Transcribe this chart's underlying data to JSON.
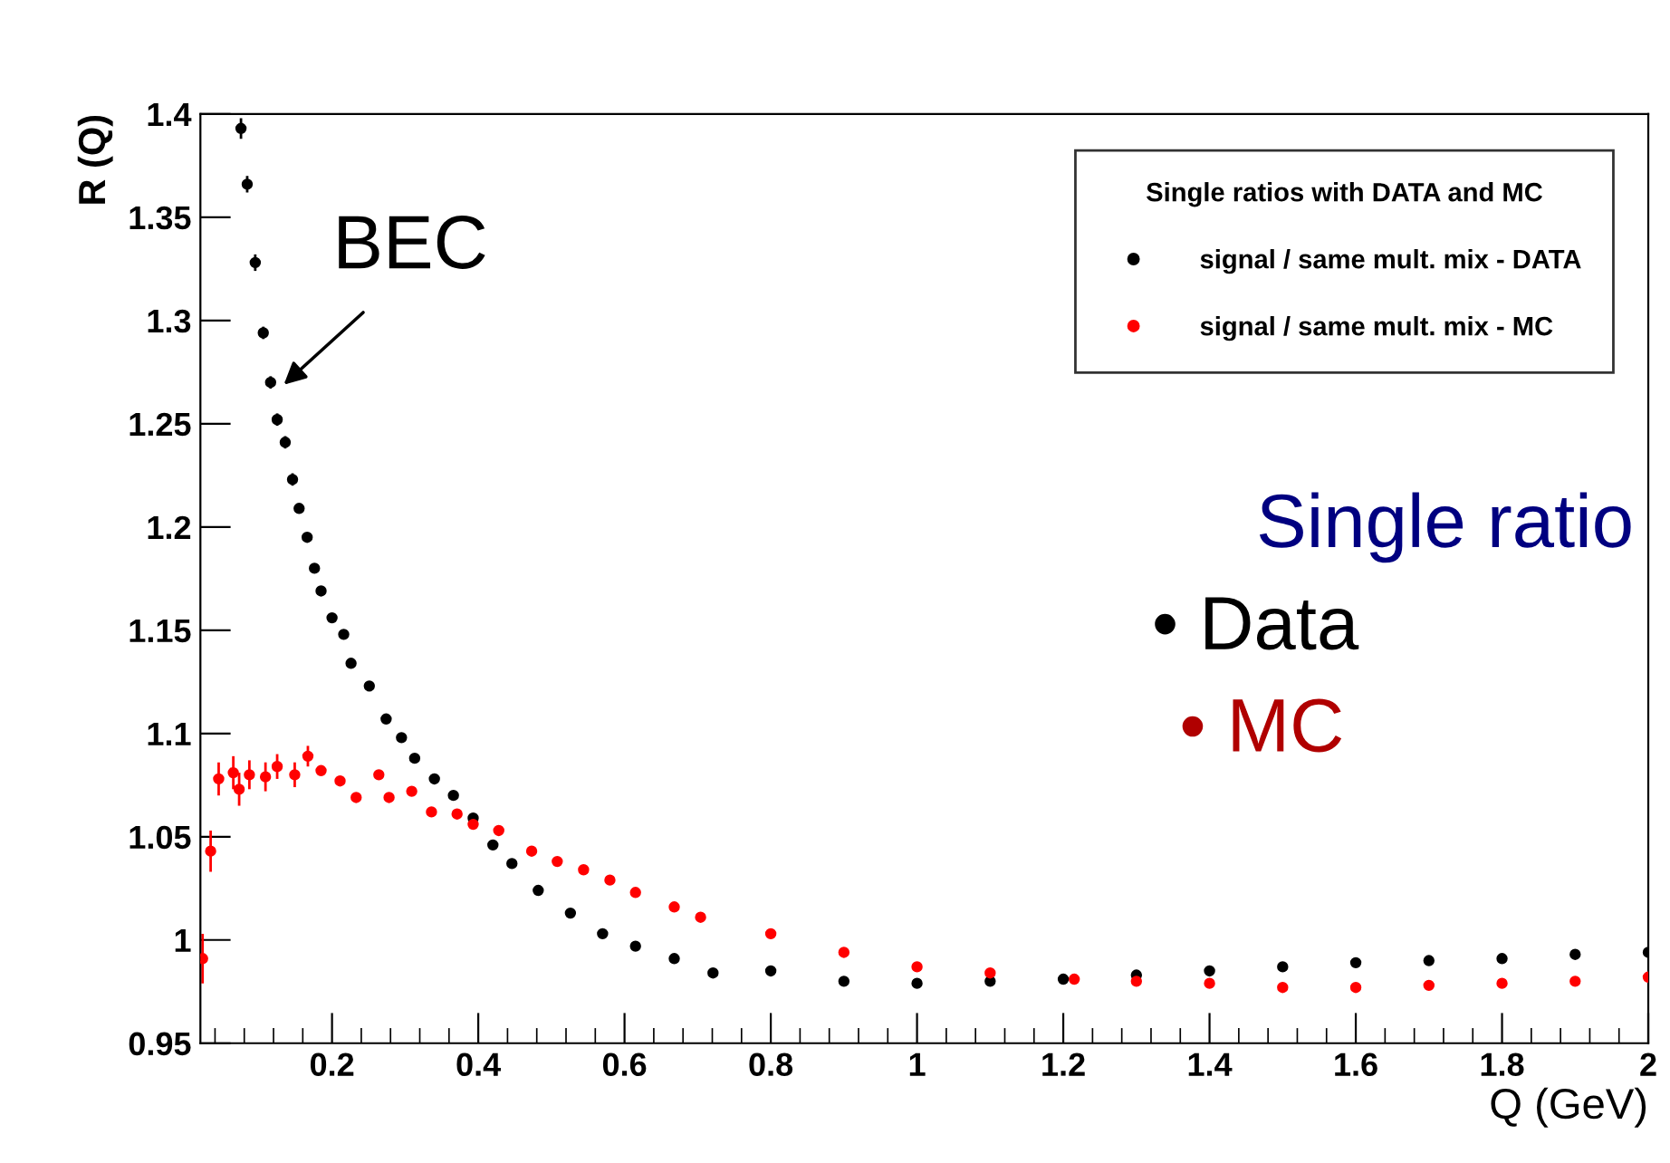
{
  "chart_data": {
    "type": "scatter",
    "xlabel": "Q (GeV)",
    "ylabel": "R (Q)",
    "legend_title": "Single ratios with DATA and MC",
    "legend": "top right",
    "grid": false,
    "marker": "circle",
    "xlim": [
      0.02,
      2.0
    ],
    "ylim": [
      0.95,
      1.4
    ],
    "xticks": [
      0.2,
      0.4,
      0.6,
      0.8,
      1,
      1.2,
      1.4,
      1.6,
      1.8,
      2
    ],
    "yticks": [
      0.95,
      1,
      1.05,
      1.1,
      1.15,
      1.2,
      1.25,
      1.3,
      1.35,
      1.4
    ],
    "series": [
      {
        "name": "signal / same mult. mix - DATA",
        "color": "#000000",
        "x": [
          0.0755,
          0.084,
          0.095,
          0.106,
          0.116,
          0.125,
          0.136,
          0.146,
          0.155,
          0.166,
          0.176,
          0.185,
          0.2,
          0.216,
          0.226,
          0.251,
          0.274,
          0.295,
          0.313,
          0.34,
          0.366,
          0.393,
          0.42,
          0.446,
          0.482,
          0.526,
          0.57,
          0.615,
          0.668,
          0.721,
          0.8,
          0.9,
          1.0,
          1.1,
          1.2,
          1.3,
          1.4,
          1.5,
          1.6,
          1.7,
          1.8,
          1.9,
          2.0
        ],
        "values": [
          1.393,
          1.366,
          1.328,
          1.294,
          1.27,
          1.252,
          1.241,
          1.223,
          1.209,
          1.195,
          1.18,
          1.169,
          1.156,
          1.148,
          1.134,
          1.123,
          1.107,
          1.098,
          1.088,
          1.078,
          1.07,
          1.059,
          1.046,
          1.037,
          1.024,
          1.013,
          1.003,
          0.997,
          0.991,
          0.984,
          0.985,
          0.98,
          0.979,
          0.98,
          0.981,
          0.983,
          0.985,
          0.987,
          0.989,
          0.99,
          0.991,
          0.993,
          0.994
        ],
        "errors": [
          0.005,
          0.004,
          0.004,
          0.003,
          0.003,
          0.003,
          0.003,
          0.003,
          null,
          null,
          null,
          null,
          null,
          null,
          null,
          null,
          null,
          null,
          null,
          null,
          null,
          null,
          null,
          null,
          null,
          null,
          null,
          null,
          null,
          null,
          null,
          null,
          null,
          null,
          null,
          null,
          null,
          null,
          null,
          null,
          null,
          null,
          null
        ]
      },
      {
        "name": "signal / same mult. mix - MC",
        "color": "#ff0000",
        "x": [
          0.023,
          0.034,
          0.045,
          0.065,
          0.073,
          0.087,
          0.109,
          0.125,
          0.149,
          0.167,
          0.185,
          0.211,
          0.233,
          0.264,
          0.278,
          0.309,
          0.336,
          0.371,
          0.393,
          0.428,
          0.473,
          0.508,
          0.544,
          0.58,
          0.615,
          0.668,
          0.704,
          0.8,
          0.9,
          1.0,
          1.1,
          1.215,
          1.3,
          1.4,
          1.5,
          1.6,
          1.7,
          1.8,
          1.9,
          2.0
        ],
        "values": [
          0.991,
          1.043,
          1.078,
          1.081,
          1.073,
          1.08,
          1.079,
          1.084,
          1.08,
          1.089,
          1.082,
          1.077,
          1.069,
          1.08,
          1.069,
          1.072,
          1.062,
          1.061,
          1.056,
          1.053,
          1.043,
          1.038,
          1.034,
          1.029,
          1.023,
          1.016,
          1.011,
          1.003,
          0.994,
          0.987,
          0.984,
          0.981,
          0.98,
          0.979,
          0.977,
          0.977,
          0.978,
          0.979,
          0.98,
          0.982
        ],
        "errors": [
          0.012,
          0.01,
          0.008,
          0.008,
          0.008,
          0.007,
          0.007,
          0.006,
          0.006,
          0.005,
          null,
          null,
          null,
          null,
          null,
          null,
          null,
          null,
          null,
          null,
          null,
          null,
          null,
          null,
          null,
          null,
          null,
          null,
          null,
          null,
          null,
          null,
          null,
          null,
          null,
          null,
          null,
          null,
          null,
          null
        ]
      }
    ],
    "annotations": [
      "BEC",
      "Single ratio",
      "• Data",
      "• MC"
    ]
  }
}
